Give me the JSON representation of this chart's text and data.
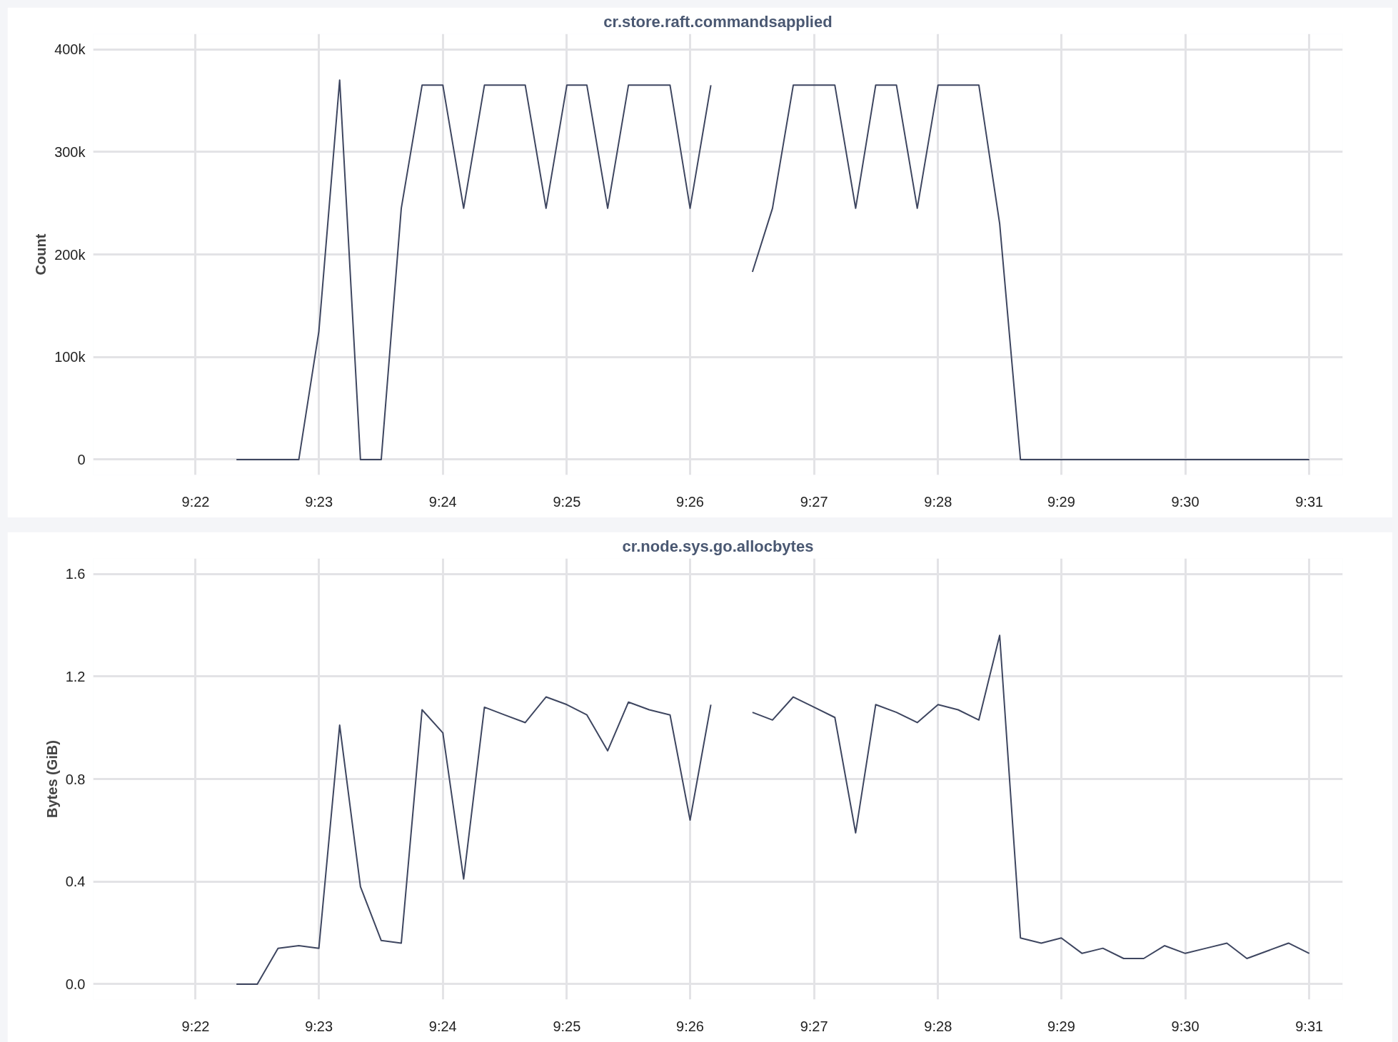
{
  "chart_data": [
    {
      "type": "line",
      "title": "cr.store.raft.commandsapplied",
      "ylabel": "Count",
      "x": [
        9.3722,
        9.375,
        9.3778,
        9.3806,
        9.3833,
        9.3861,
        9.3889,
        9.3917,
        9.3944,
        9.3972,
        9.4,
        9.4028,
        9.4056,
        9.4083,
        9.4111,
        9.4139,
        9.4167,
        9.4194,
        9.4222,
        9.425,
        9.4278,
        9.4306,
        9.4333,
        9.4361,
        9.4389,
        9.4417,
        9.4444,
        9.4472,
        9.45,
        9.4528,
        9.4556,
        9.4583,
        9.4611,
        9.4639,
        9.4667,
        9.4694,
        9.4722,
        9.475,
        9.4778,
        9.4806,
        9.4833,
        9.4861,
        9.4889,
        9.4917,
        9.4944,
        9.4972,
        9.5,
        9.5028,
        9.5056,
        9.5083,
        9.5111,
        9.5139,
        9.5167
      ],
      "series": [
        {
          "color": "#3e4660",
          "values": [
            0,
            0,
            0,
            0,
            125000,
            370000,
            0,
            0,
            245000,
            365000,
            365000,
            245000,
            365000,
            365000,
            365000,
            245000,
            365000,
            365000,
            245000,
            365000,
            365000,
            365000,
            245000,
            365000,
            null,
            183000,
            245000,
            365000,
            365000,
            365000,
            245000,
            365000,
            365000,
            245000,
            365000,
            365000,
            365000,
            230000,
            0,
            0,
            0,
            0,
            0,
            0,
            0,
            0,
            0,
            0,
            0,
            0,
            0,
            0,
            0
          ]
        }
      ],
      "xlim": [
        9.3529,
        9.5212
      ],
      "xticks": [
        {
          "value": 9.3667,
          "label": "9:22"
        },
        {
          "value": 9.3833,
          "label": "9:23"
        },
        {
          "value": 9.4,
          "label": "9:24"
        },
        {
          "value": 9.4167,
          "label": "9:25"
        },
        {
          "value": 9.4333,
          "label": "9:26"
        },
        {
          "value": 9.45,
          "label": "9:27"
        },
        {
          "value": 9.4667,
          "label": "9:28"
        },
        {
          "value": 9.4833,
          "label": "9:29"
        },
        {
          "value": 9.5,
          "label": "9:30"
        },
        {
          "value": 9.5167,
          "label": "9:31"
        }
      ],
      "ylim": [
        -15000,
        415000
      ],
      "yticks": [
        0,
        {
          "value": 100000,
          "label": "100k"
        },
        {
          "value": 200000,
          "label": "200k"
        },
        {
          "value": 300000,
          "label": "300k"
        },
        {
          "value": 400000,
          "label": "400k"
        }
      ],
      "grid": true,
      "marker": "none",
      "line_style": "solid"
    },
    {
      "type": "line",
      "title": "cr.node.sys.go.allocbytes",
      "ylabel": "Bytes (GiB)",
      "x": [
        9.3722,
        9.375,
        9.3778,
        9.3806,
        9.3833,
        9.3861,
        9.3889,
        9.3917,
        9.3944,
        9.3972,
        9.4,
        9.4028,
        9.4056,
        9.4083,
        9.4111,
        9.4139,
        9.4167,
        9.4194,
        9.4222,
        9.425,
        9.4278,
        9.4306,
        9.4333,
        9.4361,
        9.4389,
        9.4417,
        9.4444,
        9.4472,
        9.45,
        9.4528,
        9.4556,
        9.4583,
        9.4611,
        9.4639,
        9.4667,
        9.4694,
        9.4722,
        9.475,
        9.4778,
        9.4806,
        9.4833,
        9.4861,
        9.4889,
        9.4917,
        9.4944,
        9.4972,
        9.5,
        9.5028,
        9.5056,
        9.5083,
        9.5111,
        9.5139,
        9.5167
      ],
      "series": [
        {
          "color": "#3e4660",
          "values": [
            0,
            0,
            0.14,
            0.15,
            0.14,
            1.01,
            0.38,
            0.17,
            0.16,
            1.07,
            0.98,
            0.41,
            1.08,
            1.05,
            1.02,
            1.12,
            1.09,
            1.05,
            0.91,
            1.1,
            1.07,
            1.05,
            0.64,
            1.09,
            null,
            1.06,
            1.03,
            1.12,
            1.08,
            1.04,
            0.59,
            1.09,
            1.06,
            1.02,
            1.09,
            1.07,
            1.03,
            1.36,
            0.18,
            0.16,
            0.18,
            0.12,
            0.14,
            0.1,
            0.1,
            0.15,
            0.12,
            0.14,
            0.16,
            0.1,
            0.13,
            0.16,
            0.12
          ]
        }
      ],
      "xlim": [
        9.3529,
        9.5212
      ],
      "xticks": [
        {
          "value": 9.3667,
          "label": "9:22"
        },
        {
          "value": 9.3833,
          "label": "9:23"
        },
        {
          "value": 9.4,
          "label": "9:24"
        },
        {
          "value": 9.4167,
          "label": "9:25"
        },
        {
          "value": 9.4333,
          "label": "9:26"
        },
        {
          "value": 9.45,
          "label": "9:27"
        },
        {
          "value": 9.4667,
          "label": "9:28"
        },
        {
          "value": 9.4833,
          "label": "9:29"
        },
        {
          "value": 9.5,
          "label": "9:30"
        },
        {
          "value": 9.5167,
          "label": "9:31"
        }
      ],
      "ylim": [
        -0.06,
        1.66
      ],
      "yticks": [
        {
          "value": 0,
          "label": "0.0"
        },
        {
          "value": 0.4,
          "label": "0.4"
        },
        {
          "value": 0.8,
          "label": "0.8"
        },
        {
          "value": 1.2,
          "label": "1.2"
        },
        {
          "value": 1.6,
          "label": "1.6"
        }
      ],
      "grid": true,
      "marker": "none",
      "line_style": "solid"
    }
  ]
}
